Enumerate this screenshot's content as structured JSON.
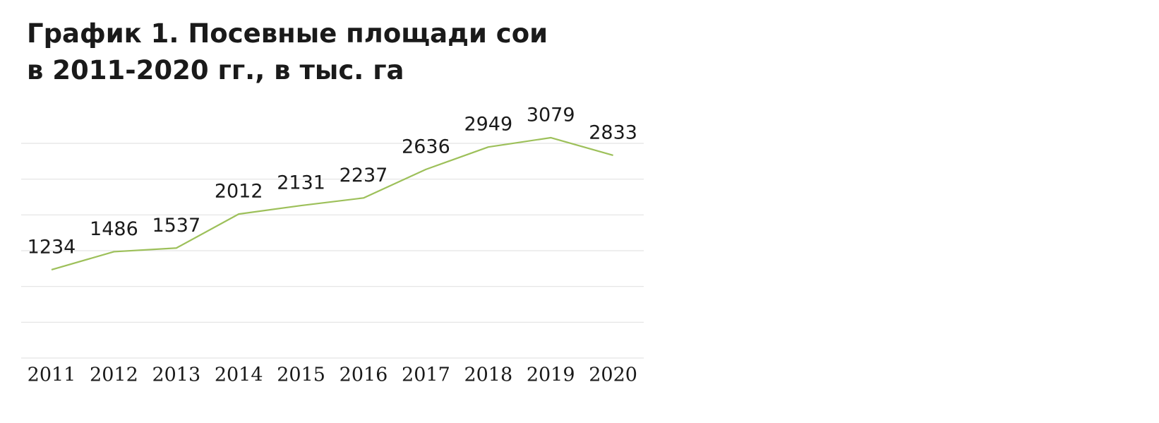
{
  "chart_data": {
    "type": "line",
    "title": [
      "График 1. Посевные площади сои",
      "в 2011-2020 гг., в тыс. га"
    ],
    "categories": [
      "2011",
      "2012",
      "2013",
      "2014",
      "2015",
      "2016",
      "2017",
      "2018",
      "2019",
      "2020"
    ],
    "values": [
      1234,
      1486,
      1537,
      2012,
      2131,
      2237,
      2636,
      2949,
      3079,
      2833
    ],
    "color": "#9dc05a",
    "ylim": [
      0,
      3000
    ],
    "yticks": [
      0,
      500,
      1000,
      1500,
      2000,
      2500,
      3000
    ],
    "grid": true
  }
}
